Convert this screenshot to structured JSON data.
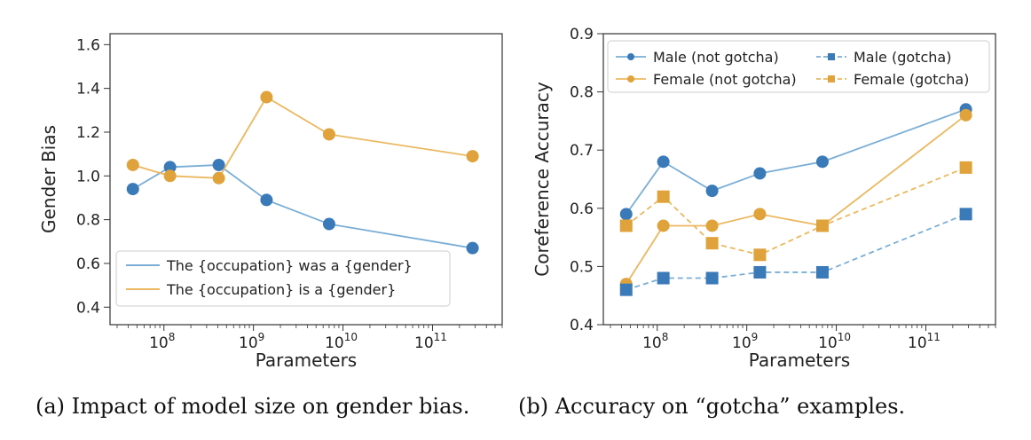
{
  "colors": {
    "blue": "#3b7ab8",
    "blue_light": "#7aaed6",
    "orange": "#e0a23a",
    "orange_light": "#ebb860"
  },
  "captions": {
    "a": "(a) Impact of model size on gender bias.",
    "b": "(b) Accuracy on “gotcha” examples."
  },
  "chart_data": [
    {
      "type": "line",
      "xlabel": "Parameters",
      "ylabel": "Gender Bias",
      "x_scale": "log",
      "x_ticks": [
        "10^8",
        "10^9",
        "10^10",
        "10^11"
      ],
      "y_ticks": [
        0.4,
        0.6,
        0.8,
        1.0,
        1.2,
        1.4,
        1.6
      ],
      "xlim": [
        25000000,
        600000000000
      ],
      "ylim": [
        0.32,
        1.65
      ],
      "legend_position": "lower-left",
      "x": [
        45000000,
        117000000,
        410000000,
        1400000000,
        7000000000,
        280000000000
      ],
      "series": [
        {
          "name": "The {occupation} was a {gender}",
          "values": [
            0.94,
            1.04,
            1.05,
            0.89,
            0.78,
            0.67
          ],
          "color": "#3b7ab8",
          "line": "#7aaed6",
          "dash": "solid",
          "marker": "circle"
        },
        {
          "name": "The {occupation} is a {gender}",
          "values": [
            1.05,
            1.0,
            0.99,
            1.36,
            1.19,
            1.09
          ],
          "color": "#e0a23a",
          "line": "#ebb860",
          "dash": "solid",
          "marker": "circle"
        }
      ]
    },
    {
      "type": "line",
      "xlabel": "Parameters",
      "ylabel": "Coreference Accuracy",
      "x_scale": "log",
      "x_ticks": [
        "10^8",
        "10^9",
        "10^10",
        "10^11"
      ],
      "y_ticks": [
        0.4,
        0.5,
        0.6,
        0.7,
        0.8,
        0.9
      ],
      "xlim": [
        25000000,
        600000000000
      ],
      "ylim": [
        0.4,
        0.9
      ],
      "legend_position": "top",
      "x": [
        45000000,
        117000000,
        410000000,
        1400000000,
        7000000000,
        280000000000
      ],
      "series": [
        {
          "name": "Male (not gotcha)",
          "values": [
            0.59,
            0.68,
            0.63,
            0.66,
            0.68,
            0.77
          ],
          "color": "#3b7ab8",
          "line": "#7aaed6",
          "dash": "solid",
          "marker": "circle"
        },
        {
          "name": "Female (not gotcha)",
          "values": [
            0.47,
            0.57,
            0.57,
            0.59,
            0.57,
            0.76
          ],
          "color": "#e0a23a",
          "line": "#ebb860",
          "dash": "solid",
          "marker": "circle"
        },
        {
          "name": "Male (gotcha)",
          "values": [
            0.46,
            0.48,
            0.48,
            0.49,
            0.49,
            0.59
          ],
          "color": "#3b7ab8",
          "line": "#7aaed6",
          "dash": "dashed",
          "marker": "square"
        },
        {
          "name": "Female (gotcha)",
          "values": [
            0.57,
            0.62,
            0.54,
            0.52,
            0.57,
            0.67
          ],
          "color": "#e0a23a",
          "line": "#ebb860",
          "dash": "dashed",
          "marker": "square"
        }
      ]
    }
  ]
}
